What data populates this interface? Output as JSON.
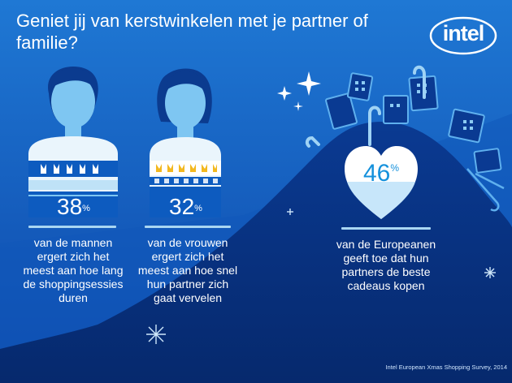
{
  "title": "Geniet jij van kerstwinkelen met je partner of familie?",
  "logo_text": "intel",
  "stats": [
    {
      "value": "38",
      "unit": "%",
      "caption": [
        "van de mannen",
        "ergert zich het",
        "meest aan hoe lang",
        "de shoppingsessies",
        "duren"
      ]
    },
    {
      "value": "32",
      "unit": "%",
      "caption": [
        "van de vrouwen",
        "ergert zich het",
        "meest aan hoe snel",
        "hun partner zich",
        "gaat vervelen"
      ]
    },
    {
      "value": "46",
      "unit": "%",
      "caption": [
        "van de Europeanen",
        "geeft toe dat hun",
        "partners de beste",
        "cadeaus kopen"
      ]
    }
  ],
  "source": "Intel European Xmas Shopping Survey, 2014",
  "colors": {
    "background_top": "#1a6fcf",
    "background_bottom": "#0c3f9e",
    "hill": "#072f82",
    "accent": "#1591dc",
    "rule": "#a9d6f2"
  }
}
